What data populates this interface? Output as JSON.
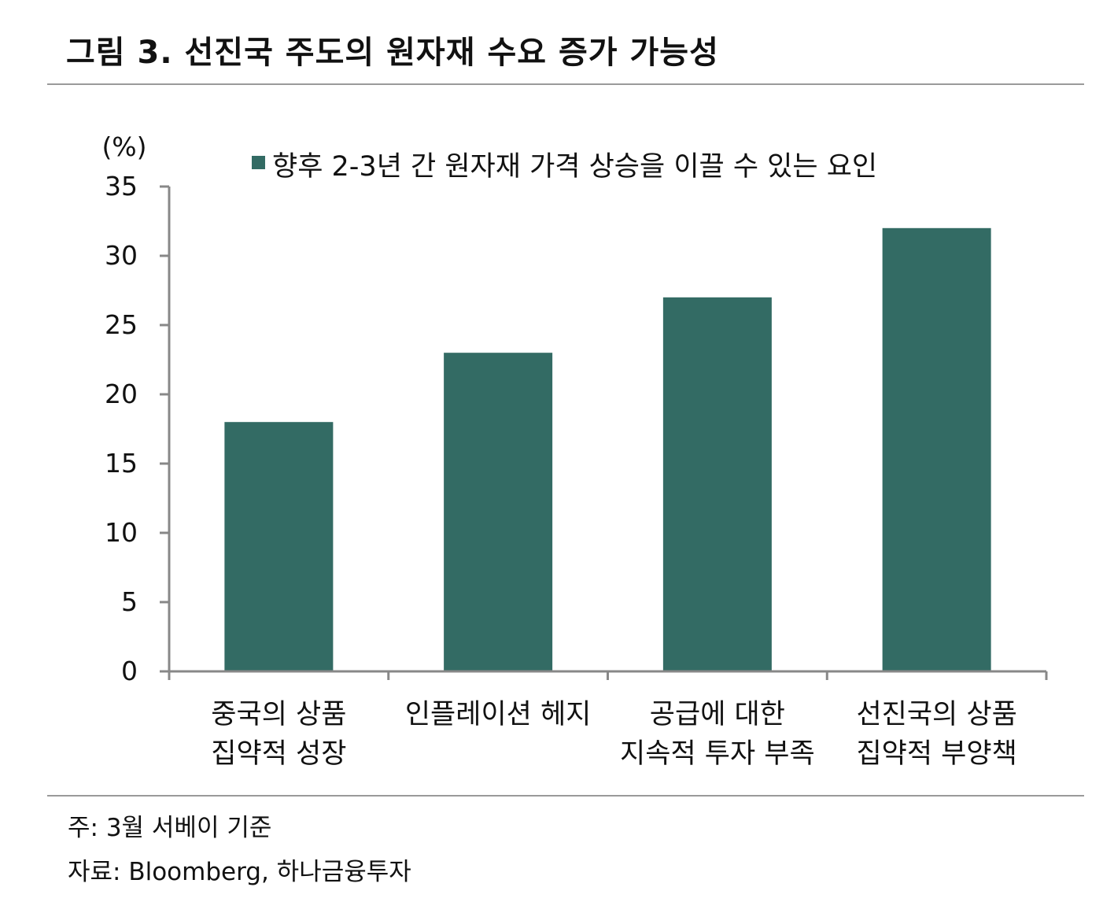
{
  "figure": {
    "title": "그림 3. 선진국 주도의 원자재 수요 증가 가능성",
    "notes": [
      "주: 3월 서베이 기준",
      "자료: Bloomberg, 하나금융투자"
    ]
  },
  "chart_data": {
    "type": "bar",
    "categories": [
      [
        "중국의 상품",
        "집약적 성장"
      ],
      [
        "인플레이션 헤지"
      ],
      [
        "공급에 대한",
        "지속적 투자 부족"
      ],
      [
        "선진국의 상품",
        "집약적 부양책"
      ]
    ],
    "series": [
      {
        "name": "향후 2-3년 간 원자재 가격 상승을 이끌 수 있는 요인",
        "values": [
          18,
          23,
          27,
          32
        ],
        "color": "#336b64"
      }
    ],
    "ylabel": "(%)",
    "ylim": [
      0,
      35
    ],
    "yticks": [
      0,
      5,
      10,
      15,
      20,
      25,
      30,
      35
    ],
    "grid": false,
    "legend_position": "top-center",
    "colors": {
      "bar": "#336b64",
      "axis": "#888888",
      "rule": "#9a9a9a"
    }
  }
}
